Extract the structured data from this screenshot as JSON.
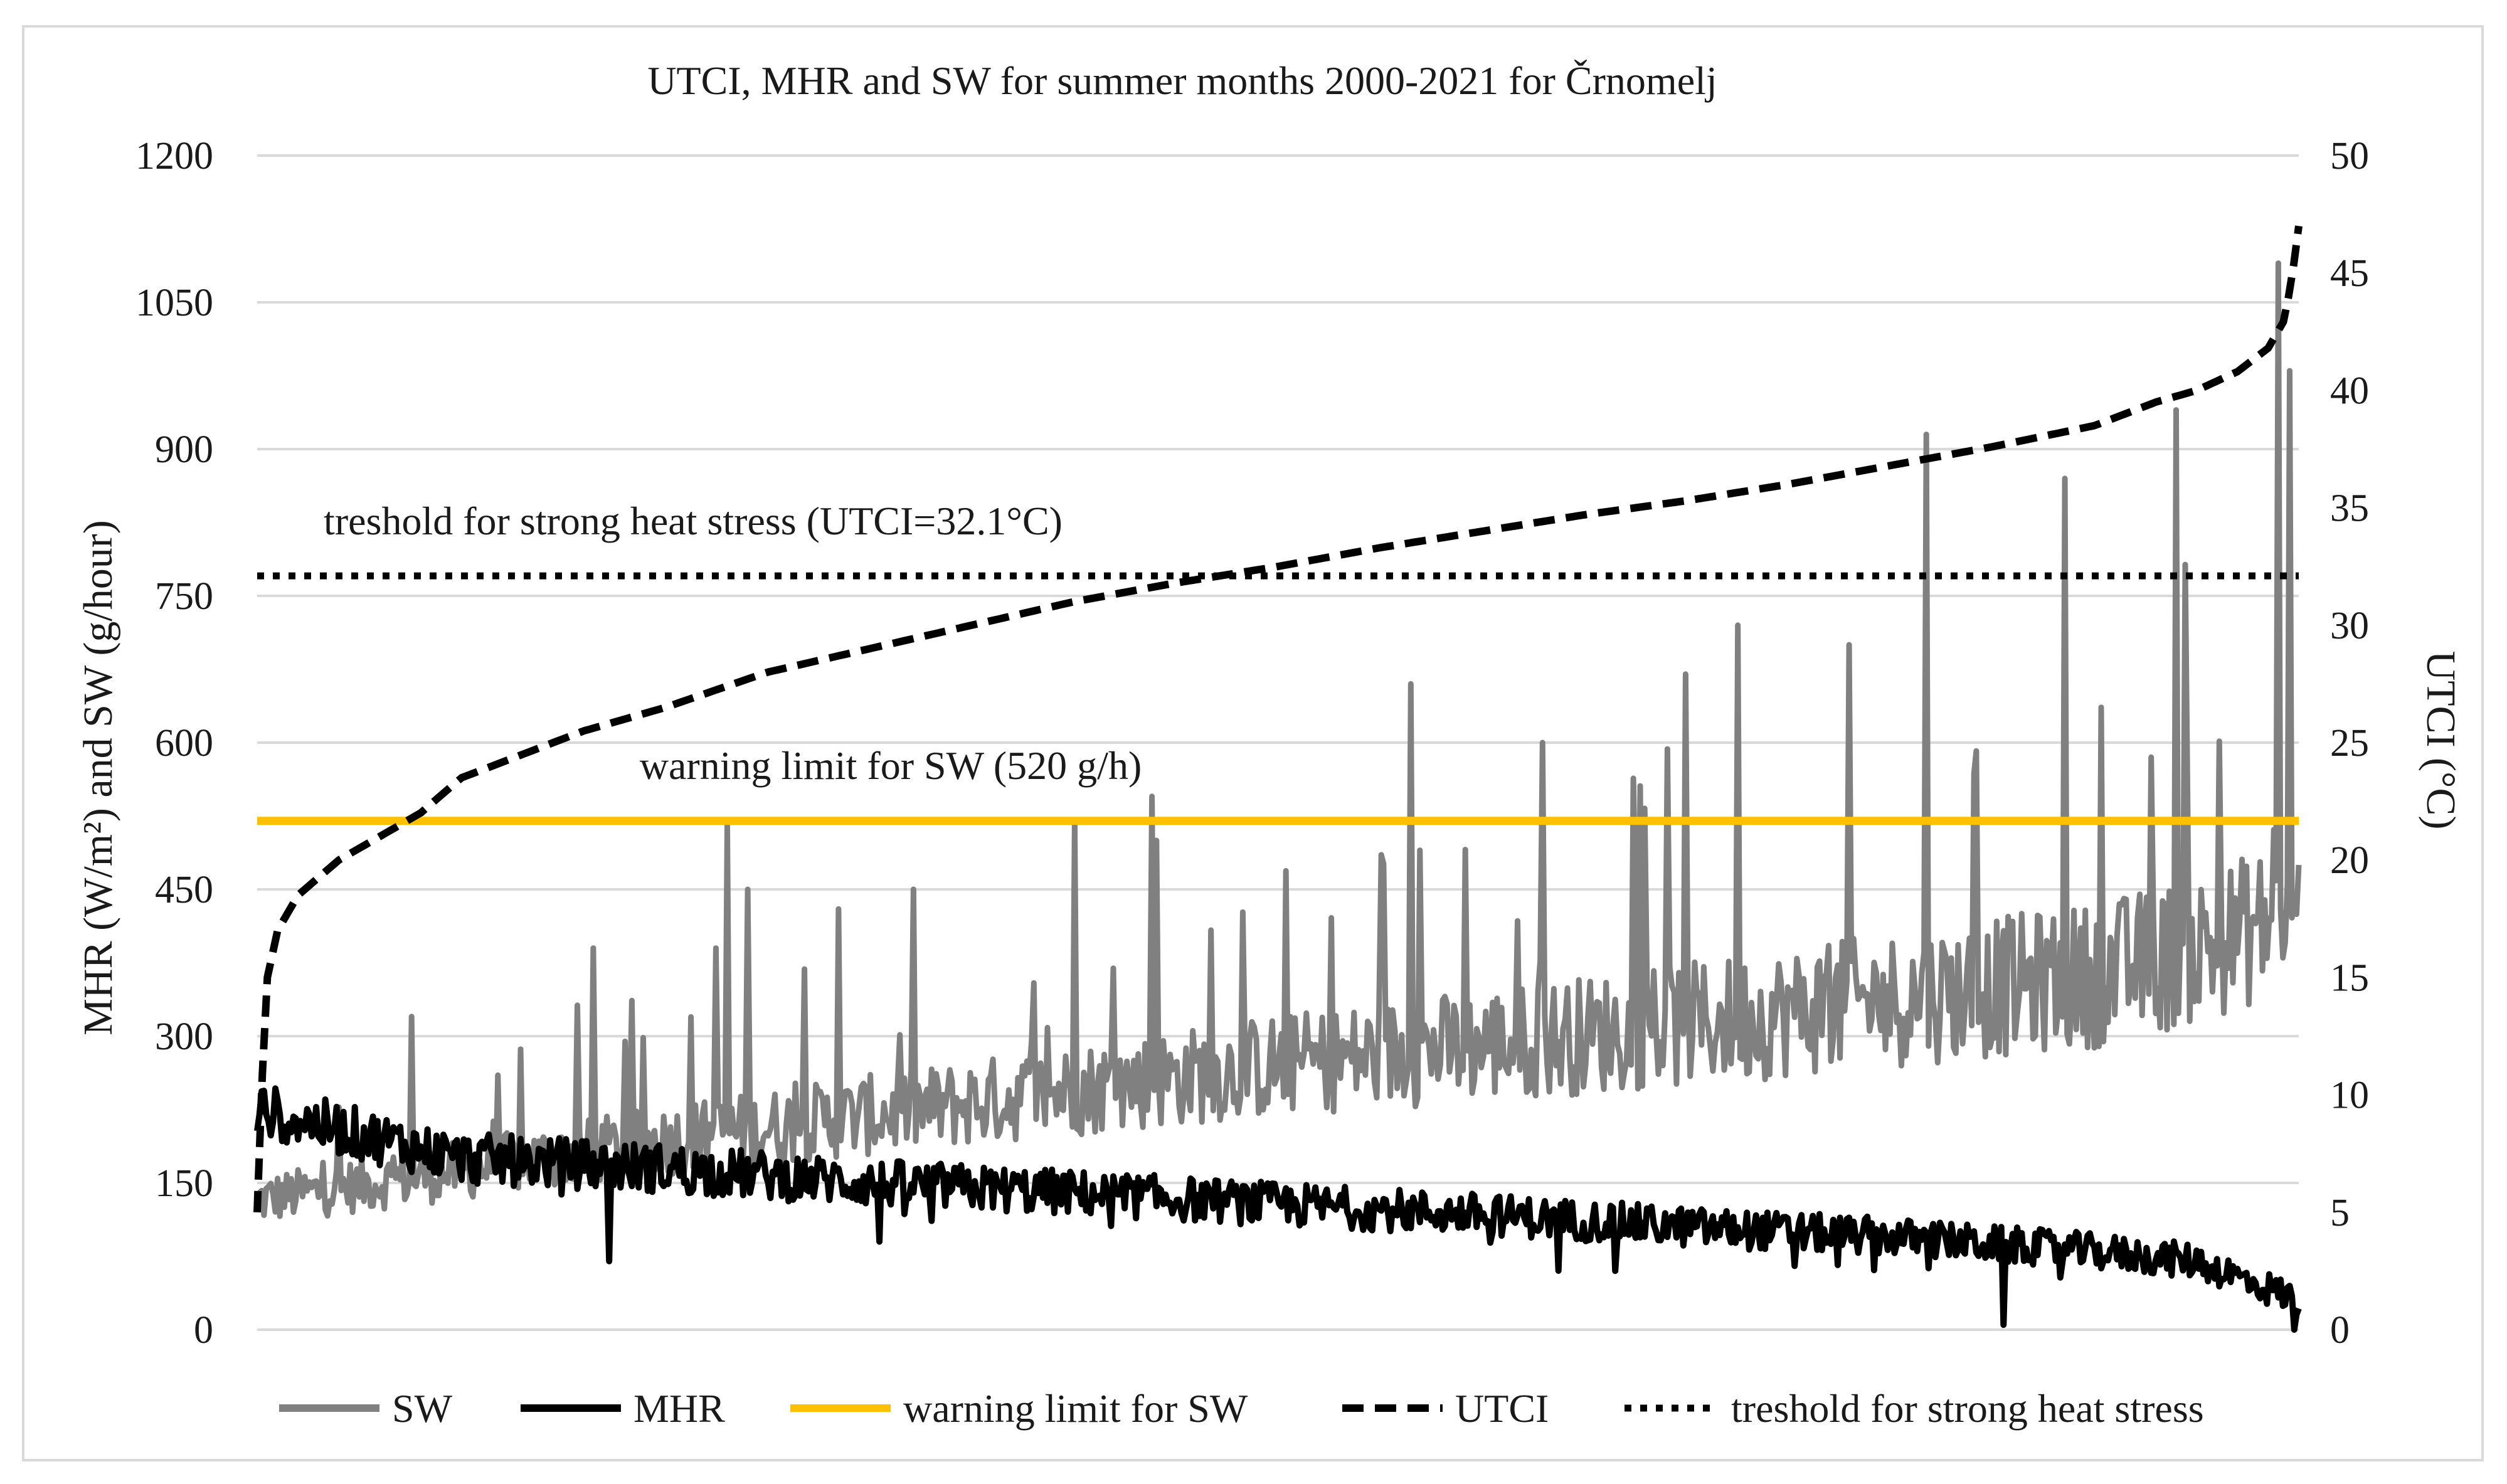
{
  "chart_data": {
    "type": "line",
    "title": "UTCI,  MHR and SW for summer months 2000-2021  for Črnomelj",
    "ylabel_left": "MHR (W/m²) and SW (g/hour)",
    "ylabel_right": "UTCI (°C)",
    "xlabel": "",
    "ylim_left": [
      0,
      1200
    ],
    "ylim_right": [
      0,
      50
    ],
    "yticks_left": [
      0,
      150,
      300,
      450,
      600,
      750,
      900,
      1050,
      1200
    ],
    "yticks_right": [
      0,
      5,
      10,
      15,
      20,
      25,
      30,
      35,
      40,
      45,
      50
    ],
    "grid": true,
    "x_points": 900,
    "series": [
      {
        "name": "SW",
        "axis": "left",
        "color": "#808080",
        "style": "solid",
        "trend_x": [
          0,
          0.1,
          0.2,
          0.3,
          0.4,
          0.5,
          0.6,
          0.7,
          0.8,
          0.9,
          0.95,
          1.0
        ],
        "trend_y": [
          130,
          160,
          190,
          215,
          240,
          265,
          285,
          305,
          330,
          355,
          380,
          420
        ],
        "spikes": [
          {
            "x": 0.076,
            "y": 320
          },
          {
            "x": 0.165,
            "y": 390
          },
          {
            "x": 0.225,
            "y": 390
          },
          {
            "x": 0.23,
            "y": 515
          },
          {
            "x": 0.24,
            "y": 450
          },
          {
            "x": 0.285,
            "y": 430
          },
          {
            "x": 0.4,
            "y": 520
          },
          {
            "x": 0.44,
            "y": 500
          },
          {
            "x": 0.438,
            "y": 545
          },
          {
            "x": 0.57,
            "y": 490
          },
          {
            "x": 0.565,
            "y": 660
          },
          {
            "x": 0.63,
            "y": 600
          },
          {
            "x": 0.7,
            "y": 670
          },
          {
            "x": 0.725,
            "y": 720
          },
          {
            "x": 0.78,
            "y": 700
          },
          {
            "x": 0.818,
            "y": 915
          },
          {
            "x": 0.885,
            "y": 870
          },
          {
            "x": 0.94,
            "y": 940
          },
          {
            "x": 0.99,
            "y": 1090
          },
          {
            "x": 0.995,
            "y": 980
          }
        ]
      },
      {
        "name": "MHR",
        "axis": "left",
        "color": "#000000",
        "style": "solid",
        "trend_x": [
          0,
          0.1,
          0.2,
          0.3,
          0.4,
          0.5,
          0.6,
          0.7,
          0.8,
          0.9,
          0.95,
          1.0
        ],
        "trend_y": [
          225,
          175,
          165,
          150,
          140,
          128,
          118,
          105,
          95,
          80,
          70,
          30
        ],
        "drops": [
          {
            "x": 0.172,
            "y": 70
          },
          {
            "x": 0.305,
            "y": 90
          },
          {
            "x": 0.855,
            "y": 5
          },
          {
            "x": 0.998,
            "y": 0
          }
        ]
      },
      {
        "name": "warning limit for SW",
        "axis": "left",
        "color": "#FFC000",
        "style": "solid",
        "value": 520
      },
      {
        "name": "UTCI",
        "axis": "right",
        "color": "#000000",
        "style": "dashed",
        "x": [
          0,
          0.002,
          0.005,
          0.01,
          0.02,
          0.04,
          0.06,
          0.08,
          0.1,
          0.13,
          0.16,
          0.2,
          0.25,
          0.3,
          0.35,
          0.4,
          0.45,
          0.5,
          0.55,
          0.6,
          0.65,
          0.7,
          0.75,
          0.8,
          0.85,
          0.9,
          0.93,
          0.95,
          0.97,
          0.985,
          0.993,
          0.997,
          1.0
        ],
        "y": [
          5,
          10,
          15,
          17,
          18.5,
          20,
          21,
          22,
          23.5,
          24.5,
          25.5,
          26.5,
          28,
          29,
          30,
          31,
          31.8,
          32.5,
          33.3,
          34,
          34.7,
          35.3,
          36,
          36.8,
          37.6,
          38.5,
          39.5,
          40,
          40.8,
          41.8,
          43,
          45,
          47
        ]
      },
      {
        "name": "treshold for strong heat stress",
        "axis": "right",
        "color": "#000000",
        "style": "dotted",
        "value": 32.1
      }
    ],
    "annotations": [
      {
        "text": "treshold for strong heat stress (UTCI=32.1°C)"
      },
      {
        "text": "warning limit  for SW (520 g/h)"
      }
    ],
    "legend": {
      "position": "bottom",
      "entries": [
        "SW",
        "MHR",
        "warning limit for SW",
        "UTCI",
        "treshold for strong heat stress"
      ]
    }
  }
}
